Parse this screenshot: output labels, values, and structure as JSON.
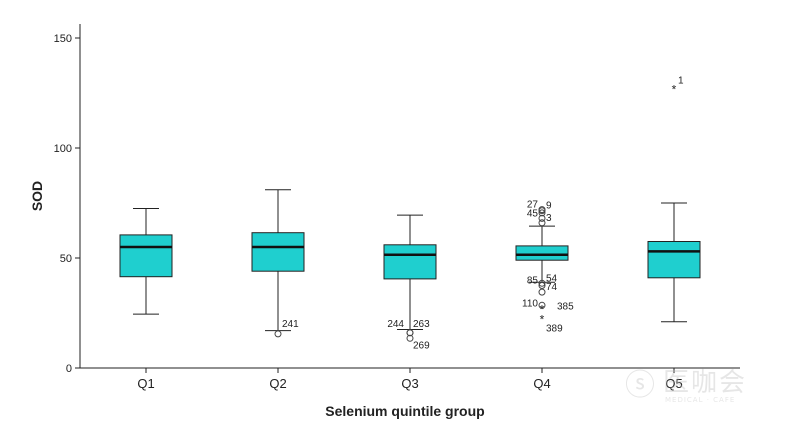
{
  "chart_data": {
    "type": "boxplot",
    "title": "",
    "xlabel": "Selenium quintile group",
    "ylabel": "SOD",
    "ylim": [
      0,
      155
    ],
    "yticks": [
      0,
      50,
      100,
      150
    ],
    "grid": false,
    "colors": {
      "box": "#1fcfcf",
      "median": "#111111",
      "line": "#222222"
    },
    "categories": [
      "Q1",
      "Q2",
      "Q3",
      "Q4",
      "Q5"
    ],
    "boxes": [
      {
        "category": "Q1",
        "whisker_low": 24.5,
        "q1": 41.5,
        "median": 55,
        "q3": 60.5,
        "whisker_high": 72.5,
        "outliers": []
      },
      {
        "category": "Q2",
        "whisker_low": 17,
        "q1": 44,
        "median": 55,
        "q3": 61.5,
        "whisker_high": 81,
        "outliers": [
          {
            "value": 15.5,
            "kind": "circle",
            "label": "241"
          }
        ]
      },
      {
        "category": "Q3",
        "whisker_low": 17.5,
        "q1": 40.5,
        "median": 51.5,
        "q3": 56,
        "whisker_high": 69.5,
        "outliers": [
          {
            "value": 16,
            "kind": "circle",
            "label": "244"
          },
          {
            "value": 16,
            "kind": "circle",
            "label": "263"
          },
          {
            "value": 13.5,
            "kind": "circle",
            "label": "269"
          }
        ]
      },
      {
        "category": "Q4",
        "whisker_low": 39,
        "q1": 49,
        "median": 51.5,
        "q3": 55.5,
        "whisker_high": 64.5,
        "outliers": [
          {
            "value": 72,
            "kind": "circle",
            "label": "27"
          },
          {
            "value": 71.5,
            "kind": "circle",
            "label": "9"
          },
          {
            "value": 70.5,
            "kind": "circle",
            "label": ""
          },
          {
            "value": 68,
            "kind": "circle",
            "label": "45"
          },
          {
            "value": 66,
            "kind": "circle",
            "label": "3"
          },
          {
            "value": 38.5,
            "kind": "circle",
            "label": "54"
          },
          {
            "value": 37.5,
            "kind": "circle",
            "label": "85"
          },
          {
            "value": 34.5,
            "kind": "circle",
            "label": "74"
          },
          {
            "value": 28.5,
            "kind": "circle",
            "label": "385"
          },
          {
            "value": 27,
            "kind": "star",
            "label": "110"
          },
          {
            "value": 22.5,
            "kind": "star",
            "label": "389"
          }
        ]
      },
      {
        "category": "Q5",
        "whisker_low": 21,
        "q1": 41,
        "median": 53,
        "q3": 57.5,
        "whisker_high": 75,
        "outliers": [
          {
            "value": 127,
            "kind": "star",
            "label": "1"
          }
        ]
      }
    ]
  },
  "watermark": {
    "text": "医咖会",
    "sub": "MEDICAL · CAFE"
  }
}
